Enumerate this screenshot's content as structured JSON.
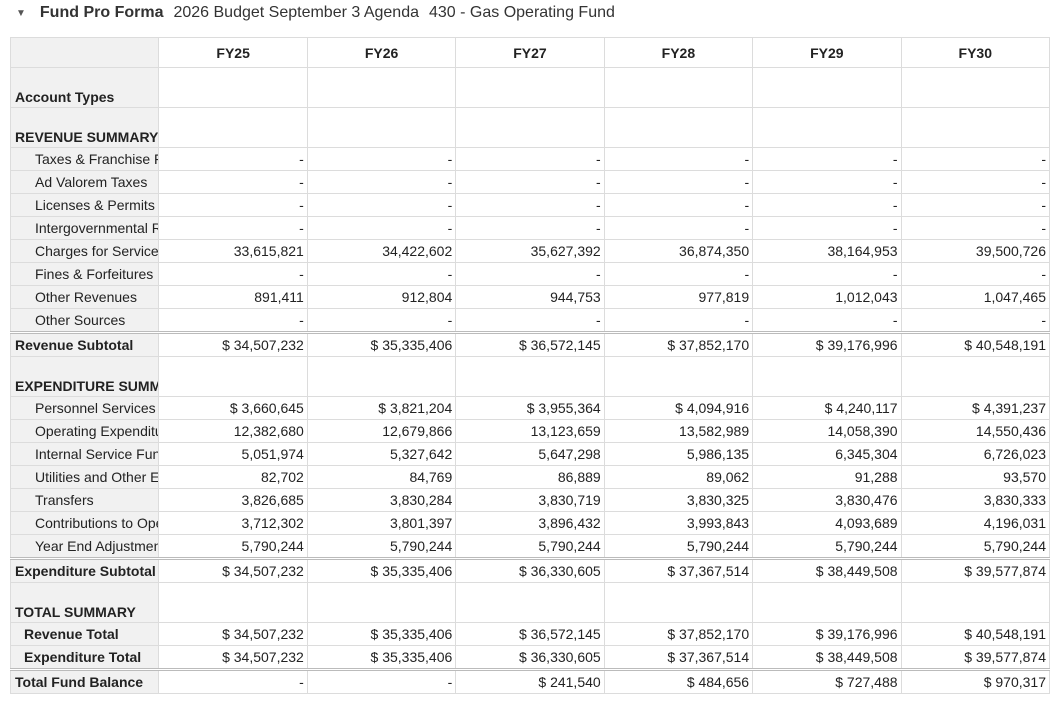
{
  "header": {
    "title": "Fund Pro Forma",
    "budget": "2026 Budget September 3 Agenda",
    "fund": "430 - Gas Operating Fund"
  },
  "columns": [
    "FY25",
    "FY26",
    "FY27",
    "FY28",
    "FY29",
    "FY30"
  ],
  "rows": [
    {
      "type": "sec",
      "label": "Account Types",
      "values": [
        "",
        "",
        "",
        "",
        "",
        ""
      ]
    },
    {
      "type": "sec",
      "label": "REVENUE SUMMARY",
      "values": [
        "",
        "",
        "",
        "",
        "",
        ""
      ]
    },
    {
      "type": "item",
      "label": "Taxes & Franchise Fees",
      "values": [
        "-",
        "-",
        "-",
        "-",
        "-",
        "-"
      ]
    },
    {
      "type": "item",
      "label": "Ad Valorem Taxes",
      "values": [
        "-",
        "-",
        "-",
        "-",
        "-",
        "-"
      ]
    },
    {
      "type": "item",
      "label": "Licenses & Permits",
      "values": [
        "-",
        "-",
        "-",
        "-",
        "-",
        "-"
      ]
    },
    {
      "type": "item",
      "label": "Intergovernmental Revenue",
      "values": [
        "-",
        "-",
        "-",
        "-",
        "-",
        "-"
      ]
    },
    {
      "type": "item",
      "label": "Charges for Services",
      "values": [
        "33,615,821",
        "34,422,602",
        "35,627,392",
        "36,874,350",
        "38,164,953",
        "39,500,726"
      ]
    },
    {
      "type": "item",
      "label": "Fines & Forfeitures",
      "values": [
        "-",
        "-",
        "-",
        "-",
        "-",
        "-"
      ]
    },
    {
      "type": "item",
      "label": "Other Revenues",
      "values": [
        "891,411",
        "912,804",
        "944,753",
        "977,819",
        "1,012,043",
        "1,047,465"
      ]
    },
    {
      "type": "item",
      "label": "Other Sources",
      "values": [
        "-",
        "-",
        "-",
        "-",
        "-",
        "-"
      ]
    },
    {
      "type": "sub",
      "label": "Revenue Subtotal",
      "values": [
        "$ 34,507,232",
        "$ 35,335,406",
        "$ 36,572,145",
        "$ 37,852,170",
        "$ 39,176,996",
        "$ 40,548,191"
      ]
    },
    {
      "type": "sec",
      "label": "EXPENDITURE SUMMARY",
      "values": [
        "",
        "",
        "",
        "",
        "",
        ""
      ]
    },
    {
      "type": "item",
      "label": "Personnel Services",
      "values": [
        "$ 3,660,645",
        "$ 3,821,204",
        "$ 3,955,364",
        "$ 4,094,916",
        "$ 4,240,117",
        "$ 4,391,237"
      ]
    },
    {
      "type": "item",
      "label": "Operating Expenditures",
      "values": [
        "12,382,680",
        "12,679,866",
        "13,123,659",
        "13,582,989",
        "14,058,390",
        "14,550,436"
      ]
    },
    {
      "type": "item",
      "label": "Internal Service Funds",
      "values": [
        "5,051,974",
        "5,327,642",
        "5,647,298",
        "5,986,135",
        "6,345,304",
        "6,726,023"
      ]
    },
    {
      "type": "item",
      "label": "Utilities and Other Expenses",
      "values": [
        "82,702",
        "84,769",
        "86,889",
        "89,062",
        "91,288",
        "93,570"
      ]
    },
    {
      "type": "item",
      "label": "Transfers",
      "values": [
        "3,826,685",
        "3,830,284",
        "3,830,719",
        "3,830,325",
        "3,830,476",
        "3,830,333"
      ]
    },
    {
      "type": "item",
      "label": "Contributions to Operations",
      "values": [
        "3,712,302",
        "3,801,397",
        "3,896,432",
        "3,993,843",
        "4,093,689",
        "4,196,031"
      ]
    },
    {
      "type": "item",
      "label": "Year End Adjustments",
      "values": [
        "5,790,244",
        "5,790,244",
        "5,790,244",
        "5,790,244",
        "5,790,244",
        "5,790,244"
      ]
    },
    {
      "type": "sub",
      "label": "Expenditure Subtotal",
      "values": [
        "$ 34,507,232",
        "$ 35,335,406",
        "$ 36,330,605",
        "$ 37,367,514",
        "$ 38,449,508",
        "$ 39,577,874"
      ]
    },
    {
      "type": "sec",
      "label": "TOTAL SUMMARY",
      "values": [
        "",
        "",
        "",
        "",
        "",
        ""
      ]
    },
    {
      "type": "tot",
      "label": "Revenue Total",
      "values": [
        "$ 34,507,232",
        "$ 35,335,406",
        "$ 36,572,145",
        "$ 37,852,170",
        "$ 39,176,996",
        "$ 40,548,191"
      ]
    },
    {
      "type": "tot",
      "label": "Expenditure Total",
      "values": [
        "$ 34,507,232",
        "$ 35,335,406",
        "$ 36,330,605",
        "$ 37,367,514",
        "$ 38,449,508",
        "$ 39,577,874"
      ]
    },
    {
      "type": "tot2",
      "label": "Total Fund Balance",
      "values": [
        "-",
        "-",
        "$ 241,540",
        "$ 484,656",
        "$ 727,488",
        "$ 970,317"
      ]
    }
  ]
}
